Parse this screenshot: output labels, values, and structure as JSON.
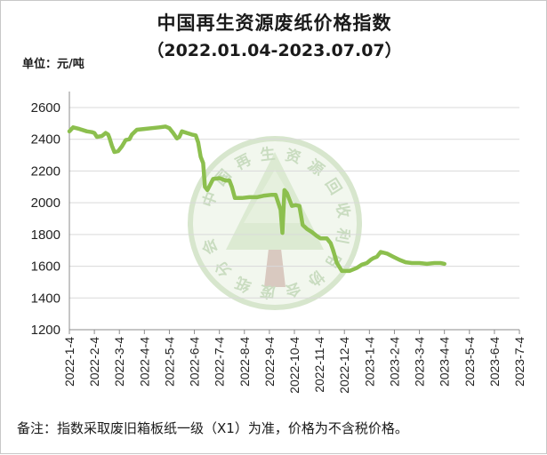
{
  "chart_data": {
    "type": "line",
    "title": "中国再生资源废纸价格指数",
    "subtitle": "（2022.01.04-2023.07.07）",
    "unit_label": "单位：元/吨",
    "note": "备注：指数采取废旧箱板纸一级（X1）为准，价格为不含税价格。",
    "watermark_text": "中国再生资源回收利用协会废纸分会",
    "ylim": [
      1200,
      2600
    ],
    "yticks": [
      "1200",
      "1400",
      "1600",
      "1800",
      "2000",
      "2200",
      "2400",
      "2600"
    ],
    "categories": [
      "2022-1-4",
      "2022-2-4",
      "2022-3-4",
      "2022-4-4",
      "2022-5-4",
      "2022-6-4",
      "2022-7-4",
      "2022-8-4",
      "2022-9-4",
      "2022-10-4",
      "2022-11-4",
      "2022-12-4",
      "2023-1-4",
      "2023-2-4",
      "2023-3-4",
      "2023-4-4",
      "2023-5-4",
      "2023-6-4",
      "2023-7-4"
    ],
    "series": [
      {
        "color": "#8cbf4e",
        "points": [
          [
            0.0,
            2450
          ],
          [
            0.15,
            2475
          ],
          [
            0.4,
            2465
          ],
          [
            0.7,
            2450
          ],
          [
            0.9,
            2445
          ],
          [
            1.0,
            2440
          ],
          [
            1.1,
            2415
          ],
          [
            1.3,
            2420
          ],
          [
            1.45,
            2440
          ],
          [
            1.55,
            2430
          ],
          [
            1.6,
            2410
          ],
          [
            1.7,
            2360
          ],
          [
            1.8,
            2320
          ],
          [
            1.95,
            2325
          ],
          [
            2.1,
            2355
          ],
          [
            2.25,
            2395
          ],
          [
            2.4,
            2400
          ],
          [
            2.5,
            2430
          ],
          [
            2.7,
            2460
          ],
          [
            3.0,
            2465
          ],
          [
            3.3,
            2470
          ],
          [
            3.6,
            2475
          ],
          [
            3.85,
            2480
          ],
          [
            4.0,
            2470
          ],
          [
            4.15,
            2440
          ],
          [
            4.3,
            2405
          ],
          [
            4.4,
            2415
          ],
          [
            4.5,
            2450
          ],
          [
            4.7,
            2440
          ],
          [
            4.9,
            2430
          ],
          [
            5.05,
            2425
          ],
          [
            5.15,
            2380
          ],
          [
            5.25,
            2290
          ],
          [
            5.35,
            2250
          ],
          [
            5.42,
            2100
          ],
          [
            5.52,
            2080
          ],
          [
            5.62,
            2110
          ],
          [
            5.75,
            2150
          ],
          [
            6.0,
            2155
          ],
          [
            6.25,
            2140
          ],
          [
            6.4,
            2140
          ],
          [
            6.5,
            2100
          ],
          [
            6.62,
            2030
          ],
          [
            6.9,
            2030
          ],
          [
            7.2,
            2035
          ],
          [
            7.5,
            2035
          ],
          [
            7.8,
            2045
          ],
          [
            8.1,
            2050
          ],
          [
            8.25,
            2050
          ],
          [
            8.45,
            1955
          ],
          [
            8.52,
            1810
          ],
          [
            8.6,
            2080
          ],
          [
            8.7,
            2060
          ],
          [
            8.8,
            2020
          ],
          [
            8.9,
            1980
          ],
          [
            9.05,
            1985
          ],
          [
            9.2,
            1980
          ],
          [
            9.33,
            1860
          ],
          [
            9.5,
            1835
          ],
          [
            9.7,
            1815
          ],
          [
            9.9,
            1790
          ],
          [
            10.05,
            1775
          ],
          [
            10.3,
            1775
          ],
          [
            10.45,
            1745
          ],
          [
            10.55,
            1700
          ],
          [
            10.7,
            1620
          ],
          [
            10.9,
            1570
          ],
          [
            11.2,
            1570
          ],
          [
            11.5,
            1590
          ],
          [
            11.7,
            1610
          ],
          [
            11.9,
            1620
          ],
          [
            12.05,
            1640
          ],
          [
            12.15,
            1650
          ],
          [
            12.3,
            1660
          ],
          [
            12.45,
            1690
          ],
          [
            12.7,
            1680
          ],
          [
            12.95,
            1660
          ],
          [
            13.2,
            1640
          ],
          [
            13.45,
            1625
          ],
          [
            13.7,
            1620
          ],
          [
            14.0,
            1620
          ],
          [
            14.3,
            1615
          ],
          [
            14.6,
            1620
          ],
          [
            14.85,
            1620
          ],
          [
            15.0,
            1615
          ]
        ]
      }
    ]
  }
}
